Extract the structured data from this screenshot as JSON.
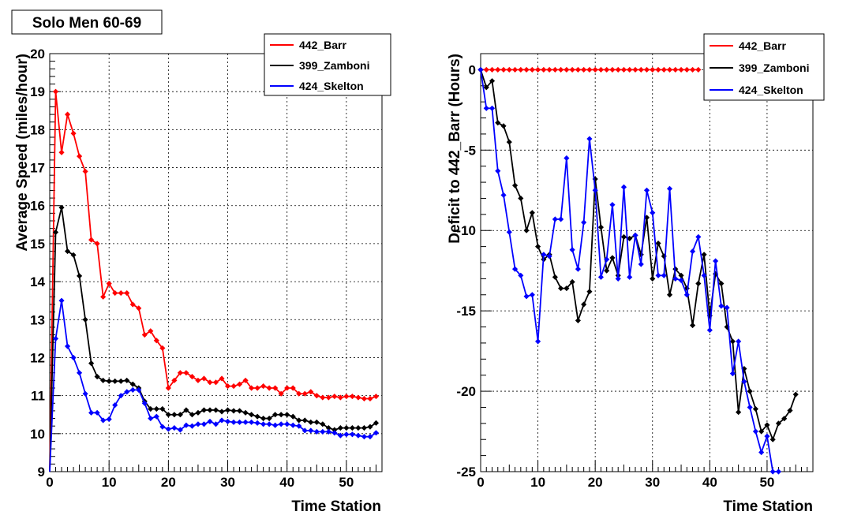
{
  "title": "Solo Men 60-69",
  "chart_data": [
    {
      "type": "line",
      "xlabel": "Time Station",
      "ylabel": "Average Speed (miles/hour)",
      "xlim": [
        0,
        56
      ],
      "ylim": [
        9,
        20
      ],
      "x_ticks": [
        0,
        10,
        20,
        30,
        40,
        50
      ],
      "y_ticks": [
        9,
        10,
        11,
        12,
        13,
        14,
        15,
        16,
        17,
        18,
        19,
        20
      ],
      "grid": true,
      "legend_position": "top-right",
      "series": [
        {
          "name": "442_Barr",
          "color": "#ff0000",
          "values": [
            0,
            19.0,
            17.4,
            18.4,
            17.9,
            17.3,
            16.9,
            15.1,
            15.0,
            13.6,
            13.95,
            13.7,
            13.7,
            13.7,
            13.4,
            13.3,
            12.6,
            12.7,
            12.45,
            12.25,
            11.2,
            11.4,
            11.6,
            11.6,
            11.5,
            11.4,
            11.45,
            11.35,
            11.35,
            11.45,
            11.25,
            11.25,
            11.3,
            11.4,
            11.2,
            11.2,
            11.25,
            11.2,
            11.2,
            11.05,
            11.2,
            11.2,
            11.05,
            11.05,
            11.1,
            11.0,
            10.95,
            10.95,
            10.98,
            10.95,
            10.98,
            10.98,
            10.95,
            10.92,
            10.92,
            10.98
          ]
        },
        {
          "name": "399_Zamboni",
          "color": "#000000",
          "values": [
            0,
            15.3,
            15.95,
            14.8,
            14.7,
            14.15,
            13.0,
            11.85,
            11.5,
            11.4,
            11.38,
            11.38,
            11.38,
            11.4,
            11.3,
            11.2,
            10.85,
            10.65,
            10.65,
            10.65,
            10.5,
            10.5,
            10.5,
            10.62,
            10.5,
            10.55,
            10.62,
            10.62,
            10.62,
            10.58,
            10.62,
            10.6,
            10.6,
            10.55,
            10.5,
            10.45,
            10.4,
            10.4,
            10.5,
            10.5,
            10.5,
            10.45,
            10.35,
            10.35,
            10.3,
            10.3,
            10.25,
            10.15,
            10.1,
            10.15,
            10.15,
            10.15,
            10.15,
            10.15,
            10.18,
            10.28
          ]
        },
        {
          "name": "424_Skelton",
          "color": "#0000ff",
          "values": [
            0,
            12.5,
            13.5,
            12.3,
            12.0,
            11.6,
            11.05,
            10.55,
            10.55,
            10.35,
            10.38,
            10.75,
            11.0,
            11.1,
            11.15,
            11.15,
            10.8,
            10.4,
            10.45,
            10.18,
            10.12,
            10.15,
            10.1,
            10.22,
            10.2,
            10.25,
            10.25,
            10.32,
            10.25,
            10.35,
            10.32,
            10.3,
            10.3,
            10.3,
            10.3,
            10.28,
            10.25,
            10.25,
            10.22,
            10.25,
            10.25,
            10.22,
            10.2,
            10.08,
            10.08,
            10.05,
            10.05,
            10.05,
            10.02,
            9.95,
            9.98,
            9.98,
            9.95,
            9.92,
            9.92,
            10.02
          ]
        }
      ]
    },
    {
      "type": "line",
      "xlabel": "Time Station",
      "ylabel": "Deficit to 442_Barr (Hours)",
      "xlim": [
        0,
        58
      ],
      "ylim": [
        -25,
        1
      ],
      "x_ticks": [
        0,
        10,
        20,
        30,
        40,
        50
      ],
      "y_ticks": [
        0,
        -5,
        -10,
        -15,
        -20,
        -25
      ],
      "grid": true,
      "legend_position": "top-right",
      "series": [
        {
          "name": "442_Barr",
          "color": "#ff0000",
          "values": [
            0,
            0,
            0,
            0,
            0,
            0,
            0,
            0,
            0,
            0,
            0,
            0,
            0,
            0,
            0,
            0,
            0,
            0,
            0,
            0,
            0,
            0,
            0,
            0,
            0,
            0,
            0,
            0,
            0,
            0,
            0,
            0,
            0,
            0,
            0,
            0,
            0,
            0,
            0
          ]
        },
        {
          "name": "399_Zamboni",
          "color": "#000000",
          "values": [
            0,
            -1.1,
            -0.7,
            -3.3,
            -3.5,
            -4.5,
            -7.2,
            -8.0,
            -10.0,
            -8.9,
            -11.0,
            -11.8,
            -11.5,
            -12.9,
            -13.6,
            -13.6,
            -13.2,
            -15.6,
            -14.6,
            -13.8,
            -6.8,
            -9.8,
            -12.5,
            -11.7,
            -12.8,
            -10.4,
            -10.5,
            -10.3,
            -11.5,
            -9.2,
            -13.0,
            -10.8,
            -11.6,
            -14.0,
            -12.4,
            -12.8,
            -13.6,
            -15.9,
            -13.3,
            -11.5,
            -15.3,
            -12.7,
            -13.3,
            -16.0,
            -16.9,
            -21.3,
            -18.6,
            -20.0,
            -21.1,
            -22.5,
            -22.1,
            -23.0,
            -22.0,
            -21.7,
            -21.2,
            -20.2
          ]
        },
        {
          "name": "424_Skelton",
          "color": "#0000ff",
          "values": [
            0,
            -2.4,
            -2.4,
            -6.3,
            -7.8,
            -10.1,
            -12.4,
            -12.8,
            -14.1,
            -14.0,
            -16.9,
            -11.5,
            -11.6,
            -9.3,
            -9.3,
            -5.5,
            -11.2,
            -12.4,
            -9.5,
            -4.3,
            -7.5,
            -12.9,
            -11.8,
            -8.4,
            -13.0,
            -7.3,
            -12.9,
            -10.3,
            -12.1,
            -7.5,
            -8.9,
            -12.8,
            -12.8,
            -7.4,
            -13.0,
            -13.1,
            -14.0,
            -11.3,
            -10.4,
            -12.8,
            -16.2,
            -11.9,
            -14.7,
            -14.8,
            -18.9,
            -16.9,
            -19.4,
            -21.0,
            -22.5,
            -23.8,
            -22.8,
            -25.0,
            -25.0
          ]
        }
      ]
    }
  ]
}
